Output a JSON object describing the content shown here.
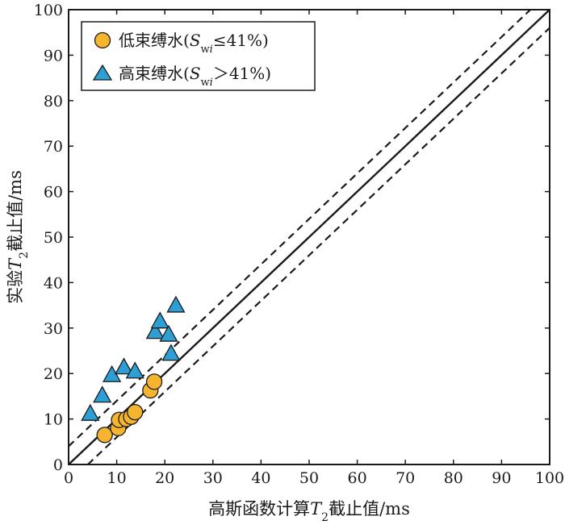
{
  "chart_data": {
    "type": "scatter",
    "title": "",
    "xlabel": {
      "main": "高斯函数计算",
      "var": "T",
      "sub": "2",
      "rest": "截止值/ms"
    },
    "ylabel": {
      "main": "实验",
      "var": "T",
      "sub": "2",
      "rest": "截止值/ms"
    },
    "xlim": [
      0,
      100
    ],
    "ylim": [
      0,
      100
    ],
    "xticks": [
      "0",
      "10",
      "20",
      "30",
      "40",
      "50",
      "60",
      "70",
      "80",
      "90",
      "100"
    ],
    "yticks": [
      "0",
      "10",
      "20",
      "30",
      "40",
      "50",
      "60",
      "70",
      "80",
      "90",
      "100"
    ],
    "tick_values": [
      0,
      10,
      20,
      30,
      40,
      50,
      60,
      70,
      80,
      90,
      100
    ],
    "grid": false,
    "legend_position": "top-left",
    "reference_lines": [
      {
        "style": "solid",
        "points": [
          [
            0,
            0
          ],
          [
            100,
            100
          ]
        ]
      },
      {
        "style": "dashed",
        "points": [
          [
            0,
            4
          ],
          [
            96,
            100
          ]
        ]
      },
      {
        "style": "dashed",
        "points": [
          [
            4,
            0
          ],
          [
            100,
            96
          ]
        ]
      }
    ],
    "series": [
      {
        "legend": {
          "prefix": "低束缚水(",
          "var": "S",
          "sub": "w",
          "subvar": "i",
          "suffix": "≤41%)"
        },
        "marker": "circle",
        "color": "#f5b52e",
        "points": [
          [
            7.5,
            6.5
          ],
          [
            10.3,
            8.0
          ],
          [
            10.5,
            9.8
          ],
          [
            12.0,
            10.0
          ],
          [
            13.0,
            10.5
          ],
          [
            13.8,
            11.5
          ],
          [
            17.0,
            16.3
          ],
          [
            17.8,
            18.2
          ]
        ]
      },
      {
        "legend": {
          "prefix": "高束缚水(",
          "var": "S",
          "sub": "w",
          "subvar": "i",
          "suffix": "＞41%)"
        },
        "marker": "triangle",
        "color": "#2d9fd4",
        "points": [
          [
            4.5,
            11.0
          ],
          [
            7.0,
            15.0
          ],
          [
            9.0,
            19.5
          ],
          [
            11.5,
            21.2
          ],
          [
            13.8,
            20.3
          ],
          [
            18.0,
            29.0
          ],
          [
            19.0,
            31.3
          ],
          [
            20.8,
            28.4
          ],
          [
            21.3,
            24.2
          ],
          [
            22.3,
            34.8
          ]
        ]
      }
    ]
  }
}
